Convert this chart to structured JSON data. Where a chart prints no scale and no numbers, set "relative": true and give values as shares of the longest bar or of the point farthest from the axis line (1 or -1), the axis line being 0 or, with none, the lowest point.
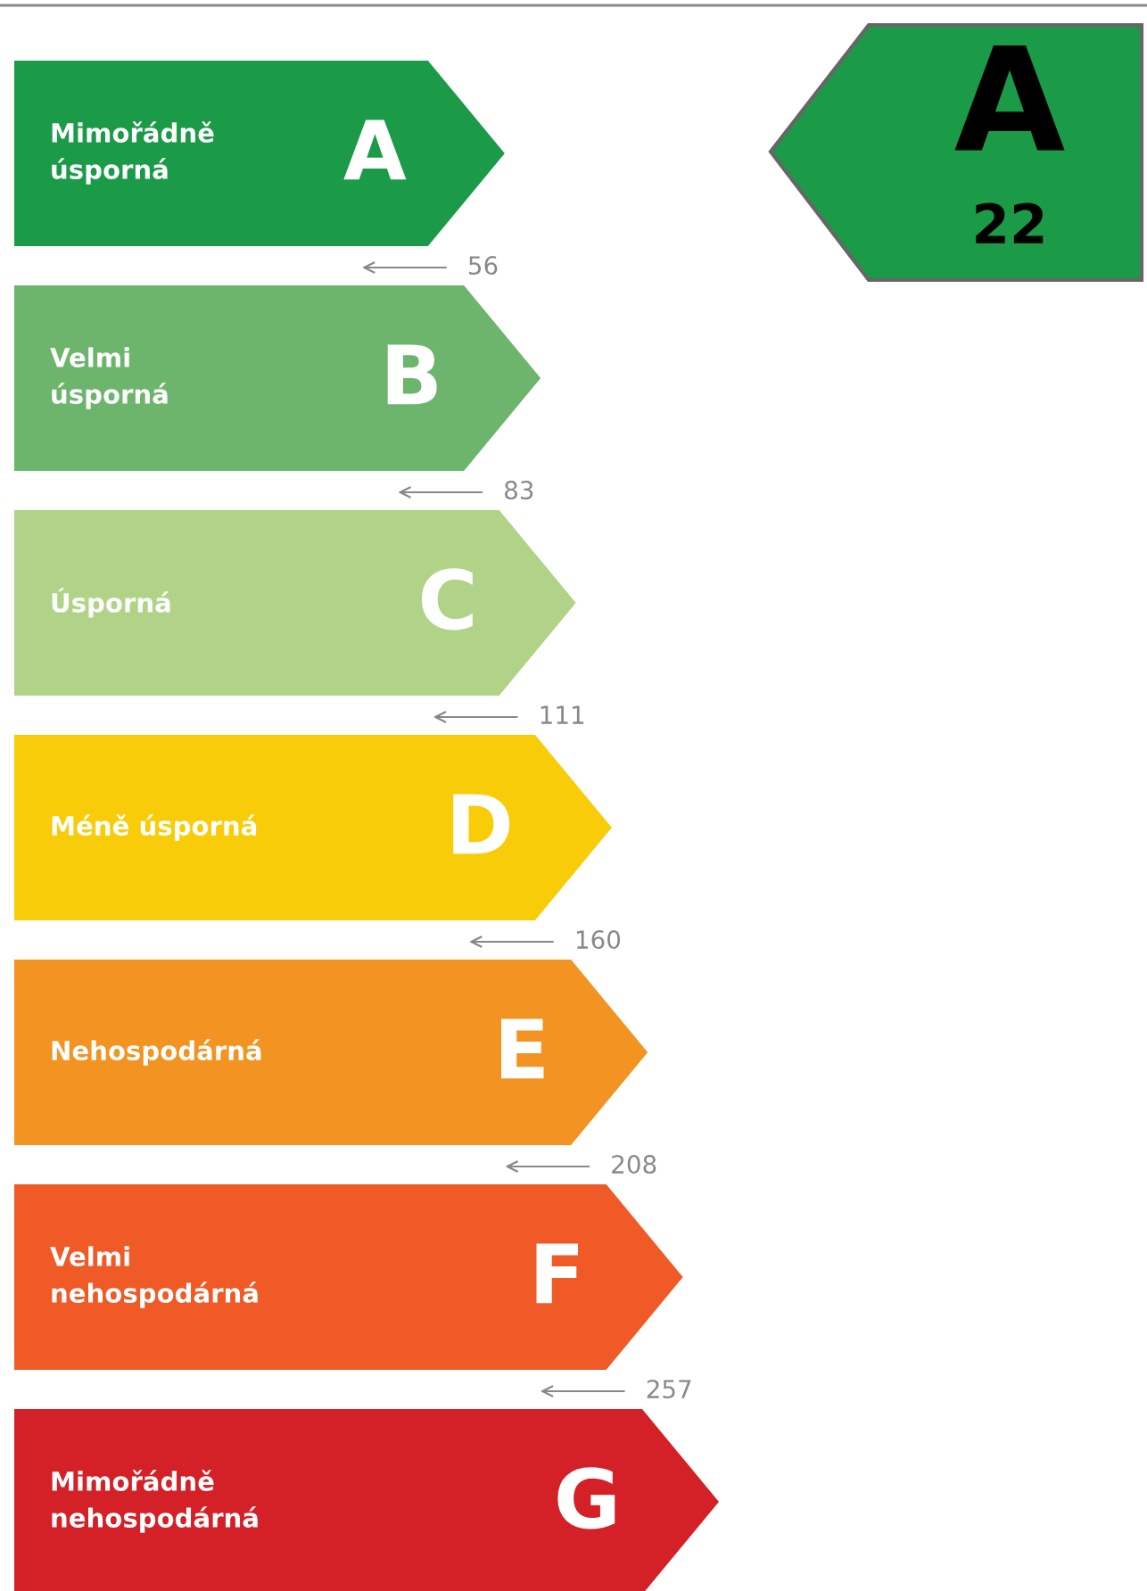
{
  "chart_data": {
    "type": "bar",
    "orientation": "horizontal",
    "relative": true,
    "categories": [
      "A",
      "B",
      "C",
      "D",
      "E",
      "F",
      "G"
    ],
    "values": [
      0.696,
      0.747,
      0.797,
      0.848,
      0.899,
      0.949,
      1
    ],
    "colors": [
      "#1b9a48",
      "#6db56d",
      "#b0d387",
      "#f9cc0a",
      "#f39321",
      "#ef5a26",
      "#d42027"
    ],
    "annotations": [
      "Mimořádně\núsporná",
      "Velmi\núsporná",
      "Úsporná",
      "Méně úsporná",
      "Nehospodárná",
      "Velmi\nnehospodárná",
      "Mimořádně\nnehospodárná",
      "56",
      "83",
      "111",
      "160",
      "208",
      "257",
      "22"
    ],
    "needle": "A"
  }
}
